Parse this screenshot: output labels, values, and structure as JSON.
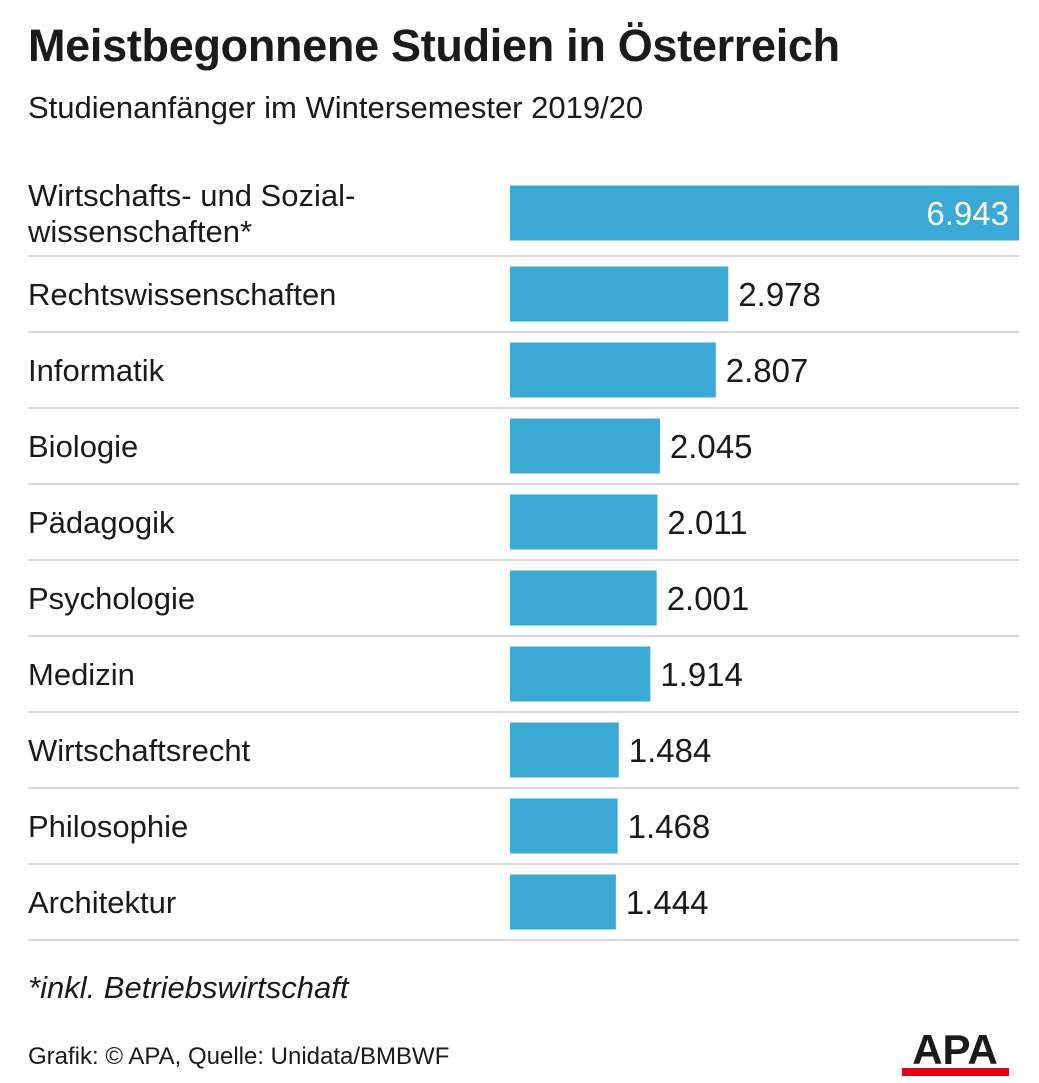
{
  "header": {
    "title": "Meistbegonnene Studien in Österreich",
    "subtitle": "Studienanfänger im Wintersemester 2019/20"
  },
  "chart_data": {
    "type": "bar",
    "orientation": "horizontal",
    "title": "Meistbegonnene Studien in Österreich",
    "subtitle": "Studienanfänger im Wintersemester 2019/20",
    "categories": [
      [
        "Wirtschafts- und Sozial-",
        "wissenschaften*"
      ],
      [
        "Rechtswissenschaften"
      ],
      [
        "Informatik"
      ],
      [
        "Biologie"
      ],
      [
        "Pädagogik"
      ],
      [
        "Psychologie"
      ],
      [
        "Medizin"
      ],
      [
        "Wirtschaftsrecht"
      ],
      [
        "Philosophie"
      ],
      [
        "Architektur"
      ]
    ],
    "values": [
      6943,
      2978,
      2807,
      2045,
      2011,
      2001,
      1914,
      1484,
      1468,
      1444
    ],
    "value_labels": [
      "6.943",
      "2.978",
      "2.807",
      "2.045",
      "2.011",
      "2.001",
      "1.914",
      "1.484",
      "1.468",
      "1.444"
    ],
    "xlim": [
      0,
      6943
    ],
    "grid": false,
    "legend": "none",
    "bar_color": "#3aa9d6",
    "separator_color": "#d9d9d9",
    "top_label_color": "#ffffff"
  },
  "footnote": "*inkl. Betriebswirtschaft",
  "source": "Grafik: © APA, Quelle: Unidata/BMBWF",
  "logo": {
    "text": "APA",
    "text_color": "#1a1a1a",
    "underline_color": "#e2001a"
  }
}
